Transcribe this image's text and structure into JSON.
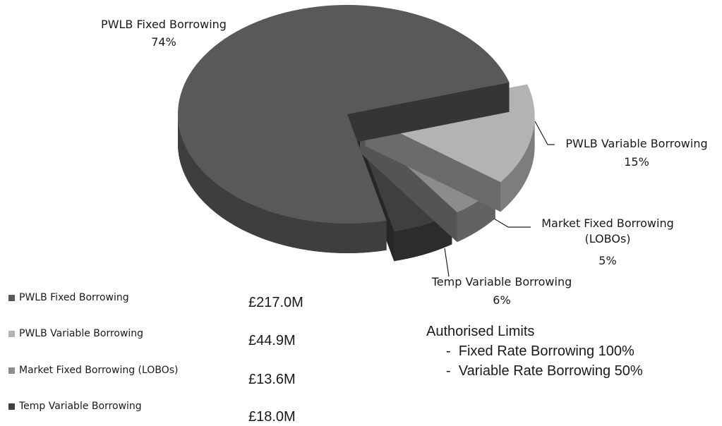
{
  "chart_data": {
    "type": "pie",
    "categories": [
      "PWLB Fixed Borrowing",
      "PWLB Variable Borrowing",
      "Market Fixed Borrowing (LOBOs)",
      "Temp Variable Borrowing"
    ],
    "values": [
      74,
      15,
      5,
      6
    ],
    "value_labels": [
      "74%",
      "15%",
      "5%",
      "6%"
    ],
    "colors": [
      "#595959",
      "#b3b3b3",
      "#8c8c8c",
      "#3f3f3f"
    ],
    "amounts": [
      217.0,
      44.9,
      13.6,
      18.0
    ],
    "amount_labels": [
      "£217.0M",
      "£44.9M",
      "£13.6M",
      "£18.0M"
    ],
    "annotation": {
      "title": "Authorised Limits",
      "lines": [
        "-  Fixed Rate Borrowing 100%",
        "-  Variable Rate Borrowing 50%"
      ]
    }
  }
}
